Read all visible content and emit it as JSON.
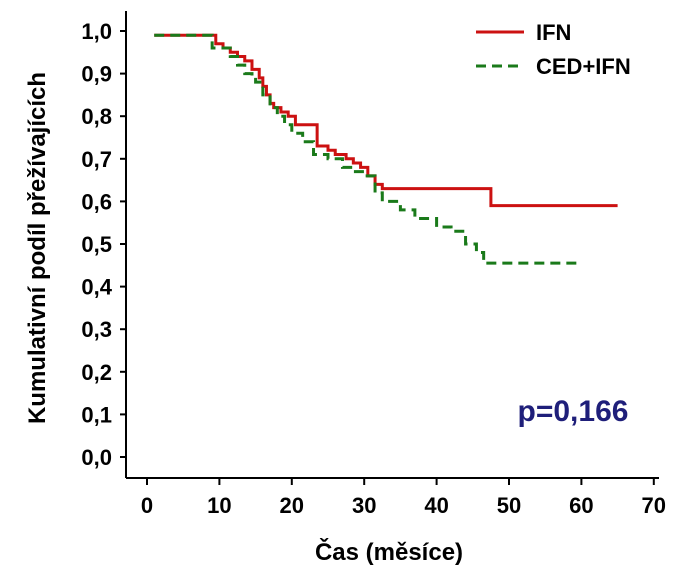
{
  "chart_data": {
    "type": "line",
    "title": "",
    "xlabel": "Čas (měsíce)",
    "ylabel": "Kumulativní podíl přežívajících",
    "xlim": [
      -2,
      70
    ],
    "ylim": [
      0,
      1.0
    ],
    "x_ticks": [
      0,
      10,
      20,
      30,
      40,
      50,
      60,
      70
    ],
    "y_ticks": [
      0.0,
      0.1,
      0.2,
      0.3,
      0.4,
      0.5,
      0.6,
      0.7,
      0.8,
      0.9,
      1.0
    ],
    "x_tick_labels": [
      "0",
      "10",
      "20",
      "30",
      "40",
      "50",
      "60",
      "70"
    ],
    "y_tick_labels": [
      "0,0",
      "0,1",
      "0,2",
      "0,3",
      "0,4",
      "0,5",
      "0,6",
      "0,7",
      "0,8",
      "0,9",
      "1,0"
    ],
    "grid": false,
    "legend": "top-right",
    "annotation": "p=0,166",
    "annotation_color": "#1f1f7a",
    "series": [
      {
        "name": "IFN",
        "color": "#cc1111",
        "style": "solid",
        "step": true,
        "x": [
          1,
          8,
          9.5,
          10.5,
          11.5,
          12.5,
          13.5,
          14.5,
          15.5,
          16,
          16.5,
          17,
          17.5,
          18.5,
          19.5,
          20.5,
          23.5,
          25,
          26,
          27.5,
          28.5,
          29.5,
          30.5,
          31.5,
          32.5,
          47.5,
          65
        ],
        "y": [
          0.99,
          0.99,
          0.97,
          0.96,
          0.95,
          0.94,
          0.93,
          0.91,
          0.89,
          0.87,
          0.85,
          0.83,
          0.82,
          0.81,
          0.8,
          0.78,
          0.73,
          0.72,
          0.71,
          0.7,
          0.69,
          0.68,
          0.66,
          0.64,
          0.63,
          0.59,
          0.59
        ]
      },
      {
        "name": "CED+IFN",
        "color": "#1a7a1a",
        "style": "dashed",
        "step": true,
        "x": [
          1,
          9,
          11.5,
          12.5,
          13.5,
          14.5,
          15,
          16,
          17,
          18,
          19,
          20,
          21.5,
          23,
          25,
          27,
          28.5,
          30,
          31.5,
          32.5,
          35,
          37,
          40,
          42,
          44,
          45.5,
          46.5,
          60
        ],
        "y": [
          0.99,
          0.96,
          0.94,
          0.92,
          0.9,
          0.89,
          0.88,
          0.85,
          0.82,
          0.8,
          0.78,
          0.76,
          0.74,
          0.71,
          0.7,
          0.68,
          0.67,
          0.66,
          0.62,
          0.6,
          0.58,
          0.56,
          0.54,
          0.53,
          0.5,
          0.48,
          0.455,
          0.455
        ]
      }
    ]
  }
}
